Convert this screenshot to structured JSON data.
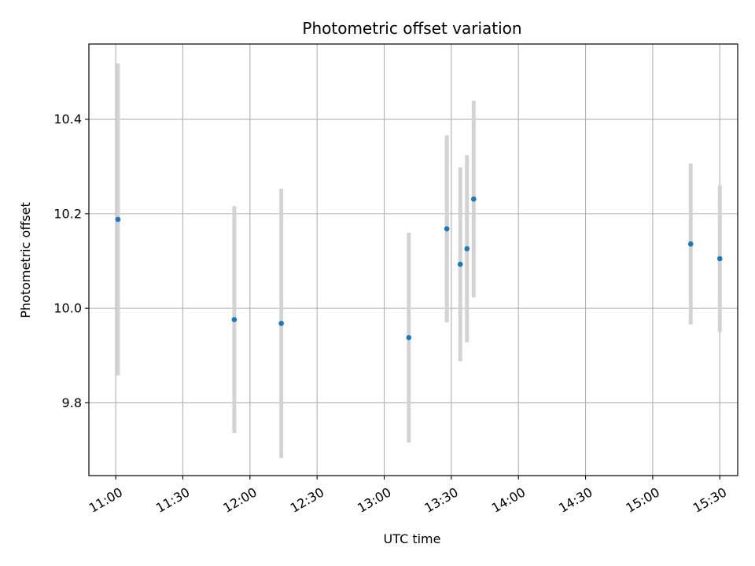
{
  "chart_data": {
    "type": "scatter",
    "title": "Photometric offset variation",
    "xlabel": "UTC time",
    "ylabel": "Photometric offset",
    "x_ticks": [
      "11:00",
      "11:30",
      "12:00",
      "12:30",
      "13:00",
      "13:30",
      "14:00",
      "14:30",
      "15:00",
      "15:30"
    ],
    "xlim": [
      "10:48",
      "15:38"
    ],
    "y_ticks": [
      9.8,
      10.0,
      10.2,
      10.4
    ],
    "ylim": [
      9.646,
      10.559
    ],
    "grid": true,
    "errorbar_color": "#d3d3d3",
    "marker_color": "#1f77b4",
    "points": [
      {
        "time": "11:01",
        "value": 10.188,
        "err": 0.33
      },
      {
        "time": "11:53",
        "value": 9.976,
        "err": 0.24
      },
      {
        "time": "12:14",
        "value": 9.968,
        "err": 0.285
      },
      {
        "time": "13:11",
        "value": 9.938,
        "err": 0.222
      },
      {
        "time": "13:28",
        "value": 10.168,
        "err": 0.198
      },
      {
        "time": "13:34",
        "value": 10.093,
        "err": 0.205
      },
      {
        "time": "13:37",
        "value": 10.126,
        "err": 0.198
      },
      {
        "time": "13:40",
        "value": 10.231,
        "err": 0.208
      },
      {
        "time": "15:17",
        "value": 10.136,
        "err": 0.17
      },
      {
        "time": "15:30",
        "value": 10.105,
        "err": 0.155
      }
    ]
  }
}
